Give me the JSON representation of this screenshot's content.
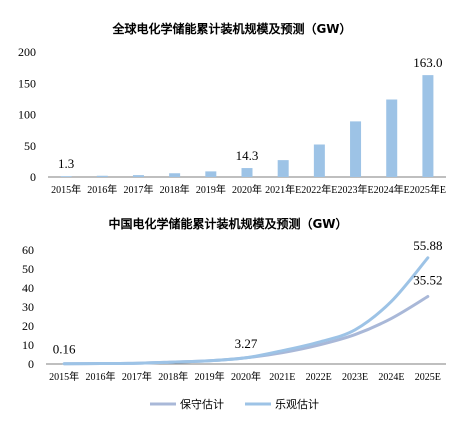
{
  "chart_data": [
    {
      "type": "bar",
      "title": "全球电化学储能累计装机规模及预测（GW）",
      "categories": [
        "2015年",
        "2016年",
        "2017年",
        "2018年",
        "2019年",
        "2020年",
        "2021年E",
        "2022年E",
        "2023年E",
        "2024年E",
        "2025年E"
      ],
      "values": [
        1.3,
        2.0,
        3.0,
        6.0,
        9.0,
        14.3,
        27.0,
        52.0,
        89.0,
        124.0,
        163.0
      ],
      "data_labels": {
        "0": "1.3",
        "5": "14.3",
        "10": "163.0"
      },
      "yticks": [
        "0",
        "50",
        "100",
        "150",
        "200"
      ],
      "ylim": [
        0,
        200
      ],
      "bar_color": "#9DC3E6",
      "grid": false
    },
    {
      "type": "line",
      "title": "中国电化学储能累计装机规模及预测（GW）",
      "categories": [
        "2015年",
        "2016年",
        "2017年",
        "2018年",
        "2019年",
        "2020年",
        "2021E",
        "2022E",
        "2023E",
        "2024E",
        "2025E"
      ],
      "series": [
        {
          "name": "保守估计",
          "color": "#A9B8D8",
          "values": [
            0.16,
            0.24,
            0.39,
            1.0,
            1.7,
            3.27,
            6.0,
            10.0,
            15.5,
            24.0,
            35.52
          ]
        },
        {
          "name": "乐观估计",
          "color": "#9DC3E6",
          "values": [
            0.16,
            0.24,
            0.39,
            1.0,
            1.7,
            3.27,
            7.0,
            11.5,
            18.0,
            33.0,
            55.88
          ]
        }
      ],
      "data_labels": [
        {
          "series": 0,
          "index": 0,
          "text": "0.16"
        },
        {
          "series": 0,
          "index": 5,
          "text": "3.27"
        },
        {
          "series": 1,
          "index": 10,
          "text": "55.88"
        },
        {
          "series": 0,
          "index": 10,
          "text": "35.52"
        }
      ],
      "yticks": [
        "0",
        "10",
        "20",
        "30",
        "40",
        "50",
        "60"
      ],
      "ylim": [
        0,
        60
      ],
      "legend_position": "bottom-center",
      "grid": false
    }
  ]
}
